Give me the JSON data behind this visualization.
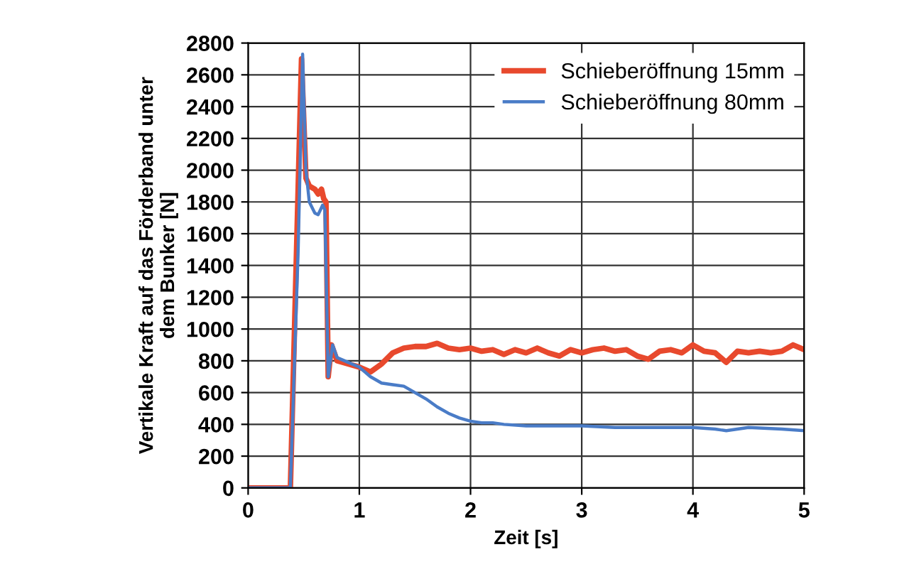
{
  "chart_data": {
    "type": "line",
    "xlabel": "Zeit [s]",
    "ylabel": "Vertikale Kraft auf das Förderband unter\ndem Bunker [N]",
    "xlim": [
      0,
      5
    ],
    "ylim": [
      0,
      2800
    ],
    "xticks": [
      0,
      1,
      2,
      3,
      4,
      5
    ],
    "yticks": [
      0,
      200,
      400,
      600,
      800,
      1000,
      1200,
      1400,
      1600,
      1800,
      2000,
      2200,
      2400,
      2600,
      2800
    ],
    "grid": true,
    "legend": "top right",
    "marker": "none",
    "line_style": "solid",
    "series": [
      {
        "name": "Schieberöffnung 15mm",
        "color": "#e8492d",
        "x": [
          0,
          0.38,
          0.48,
          0.52,
          0.55,
          0.6,
          0.63,
          0.66,
          0.68,
          0.7,
          0.72,
          0.75,
          0.8,
          0.9,
          1.0,
          1.1,
          1.2,
          1.3,
          1.4,
          1.5,
          1.6,
          1.7,
          1.8,
          1.9,
          2.0,
          2.1,
          2.2,
          2.3,
          2.4,
          2.5,
          2.6,
          2.7,
          2.8,
          2.9,
          3.0,
          3.1,
          3.2,
          3.3,
          3.4,
          3.5,
          3.6,
          3.7,
          3.8,
          3.9,
          4.0,
          4.1,
          4.2,
          4.3,
          4.4,
          4.5,
          4.6,
          4.7,
          4.8,
          4.9,
          5.0
        ],
        "values": [
          0,
          0,
          2700,
          1950,
          1900,
          1880,
          1850,
          1880,
          1820,
          1800,
          700,
          900,
          800,
          780,
          760,
          730,
          780,
          850,
          880,
          890,
          890,
          910,
          880,
          870,
          880,
          860,
          870,
          840,
          870,
          850,
          880,
          850,
          830,
          870,
          850,
          870,
          880,
          860,
          870,
          830,
          810,
          860,
          870,
          850,
          900,
          860,
          850,
          790,
          860,
          850,
          860,
          850,
          860,
          900,
          870
        ]
      },
      {
        "name": "Schieberöffnung 80mm",
        "color": "#4a7cc7",
        "x": [
          0,
          0.38,
          0.45,
          0.49,
          0.52,
          0.55,
          0.6,
          0.63,
          0.67,
          0.69,
          0.72,
          0.76,
          0.8,
          0.9,
          1.0,
          1.1,
          1.2,
          1.3,
          1.4,
          1.5,
          1.6,
          1.7,
          1.8,
          1.9,
          2.0,
          2.1,
          2.2,
          2.3,
          2.5,
          2.7,
          3.0,
          3.3,
          3.5,
          3.8,
          4.0,
          4.2,
          4.3,
          4.5,
          4.8,
          5.0
        ],
        "values": [
          0,
          0,
          1500,
          2730,
          2000,
          1800,
          1730,
          1720,
          1780,
          1750,
          700,
          900,
          820,
          790,
          760,
          700,
          660,
          650,
          640,
          600,
          560,
          510,
          470,
          440,
          420,
          410,
          410,
          400,
          390,
          390,
          390,
          380,
          380,
          380,
          380,
          370,
          360,
          380,
          370,
          360
        ]
      }
    ]
  }
}
